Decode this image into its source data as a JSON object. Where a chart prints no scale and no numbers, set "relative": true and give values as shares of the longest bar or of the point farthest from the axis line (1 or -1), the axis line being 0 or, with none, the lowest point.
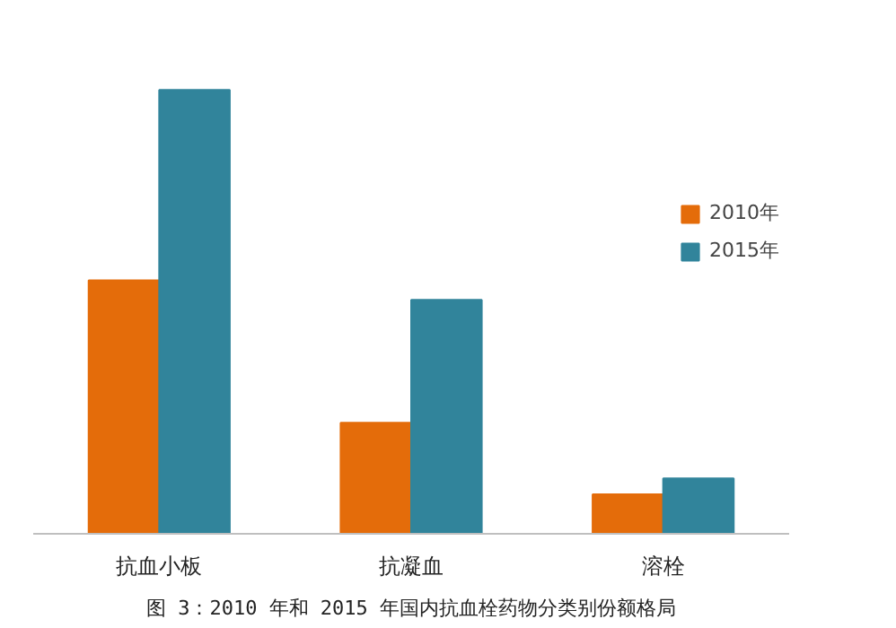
{
  "chart_data": {
    "type": "bar",
    "relative": true,
    "categories": [
      "抗血小板",
      "抗凝血",
      "溶栓"
    ],
    "series": [
      {
        "name": "2010年",
        "color": "#e46c0a",
        "values": [
          0.571,
          0.25,
          0.089
        ]
      },
      {
        "name": "2015年",
        "color": "#31849b",
        "values": [
          1,
          0.527,
          0.125
        ]
      }
    ],
    "legend": "right",
    "tick_labels": "x",
    "grid": false,
    "annotations": [
      "图 3：2010 年和 2015 年国内抗血栓药物分类别份额格局"
    ]
  }
}
